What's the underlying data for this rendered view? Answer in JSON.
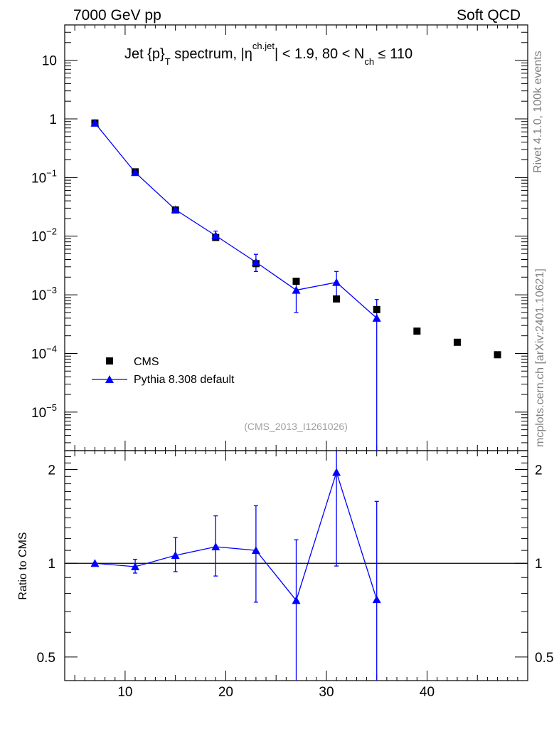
{
  "header": {
    "left": "7000 GeV pp",
    "right": "Soft QCD"
  },
  "side_labels": {
    "rivet": "Rivet 4.1.0,  100k events",
    "mcplots": "mcplots.cern.ch [arXiv:2401.10621]"
  },
  "chart_data": {
    "type": "scatter",
    "title": {
      "part1": "Jet {p}",
      "sub1": "T",
      "part2": " spectrum, |η",
      "sup2": "ch.jet",
      "part3": "| < 1.9, 80 < N",
      "sub3": "ch",
      "part4": " ≤ 110"
    },
    "analysis_label": "(CMS_2013_I1261026)",
    "xlim": [
      4,
      50
    ],
    "ylim_main": [
      2.2e-06,
      40
    ],
    "ylim_ratio": [
      0.42,
      2.3
    ],
    "x_ticks": [
      "10",
      "20",
      "30",
      "40"
    ],
    "y_ticks_main": [
      {
        "value": 10,
        "base": "10",
        "exp": ""
      },
      {
        "value": 1,
        "base": "1",
        "exp": ""
      },
      {
        "value": 0.1,
        "base": "10",
        "exp": "−1"
      },
      {
        "value": 0.01,
        "base": "10",
        "exp": "−2"
      },
      {
        "value": 0.001,
        "base": "10",
        "exp": "−3"
      },
      {
        "value": 0.0001,
        "base": "10",
        "exp": "−4"
      },
      {
        "value": 1e-05,
        "base": "10",
        "exp": "−5"
      }
    ],
    "y_ticks_ratio": [
      {
        "value": 2,
        "label": "2"
      },
      {
        "value": 1,
        "label": "1"
      },
      {
        "value": 0.5,
        "label": "0.5"
      }
    ],
    "ratio_ylabel": "Ratio to CMS",
    "legend": {
      "position": "lower-left",
      "entries": [
        "CMS",
        "Pythia 8.308 default"
      ]
    },
    "series": [
      {
        "name": "CMS",
        "marker": "square",
        "color": "#000000",
        "x": [
          7,
          11,
          15,
          19,
          23,
          27,
          31,
          35,
          39,
          43,
          47
        ],
        "y": [
          0.85,
          0.125,
          0.028,
          0.0095,
          0.0034,
          0.0017,
          0.00085,
          0.00056,
          0.00024,
          0.000155,
          9.5e-05
        ]
      },
      {
        "name": "Pythia 8.308 default",
        "marker": "triangle",
        "color": "#0000ff",
        "x": [
          7,
          11,
          15,
          19,
          23,
          27,
          31,
          35
        ],
        "y": [
          0.85,
          0.122,
          0.0283,
          0.0102,
          0.0036,
          0.0012,
          0.00163,
          0.0004
        ],
        "y_low": [
          0.85,
          0.112,
          0.0258,
          0.0085,
          0.0025,
          0.0005,
          0.00085,
          1e-06
        ],
        "y_high": [
          0.85,
          0.132,
          0.0305,
          0.0122,
          0.0049,
          0.0018,
          0.0025,
          0.00083
        ]
      }
    ],
    "ratio": {
      "name": "Pythia 8.308 default",
      "x": [
        7,
        11,
        15,
        19,
        23,
        27,
        31,
        35
      ],
      "y": [
        1.0,
        0.975,
        1.06,
        1.13,
        1.1,
        0.76,
        1.96,
        0.765
      ],
      "y_low": [
        1.0,
        0.93,
        0.94,
        0.91,
        0.75,
        0.3,
        0.98,
        0.3
      ],
      "y_high": [
        1.0,
        1.03,
        1.21,
        1.42,
        1.53,
        1.19,
        2.4,
        1.58
      ]
    }
  }
}
